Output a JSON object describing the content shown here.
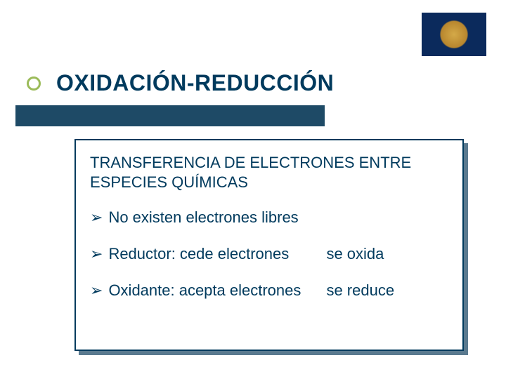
{
  "colors": {
    "title_color": "#003a5d",
    "accent_green": "#9bbb59",
    "bar_color": "#1e4a66",
    "box_border": "#003a5d",
    "box_shadow": "#5a7a8f",
    "logo_bg": "#0b2a5c",
    "logo_gold": "#d4a948",
    "background": "#ffffff"
  },
  "title": "OXIDACIÓN-REDUCCIÓN",
  "content": {
    "heading_line1": "TRANSFERENCIA DE ELECTRONES ENTRE",
    "heading_line2": "ESPECIES QUÍMICAS",
    "arrow_glyph": "➢",
    "points": [
      {
        "left": "No existen electrones libres",
        "right": ""
      },
      {
        "left": "Reductor: cede electrones",
        "right": "se oxida"
      },
      {
        "left": "Oxidante: acepta electrones",
        "right": "se reduce"
      }
    ]
  },
  "typography": {
    "title_fontsize": 32,
    "body_fontsize": 22,
    "font_family": "Verdana, Arial, sans-serif"
  }
}
